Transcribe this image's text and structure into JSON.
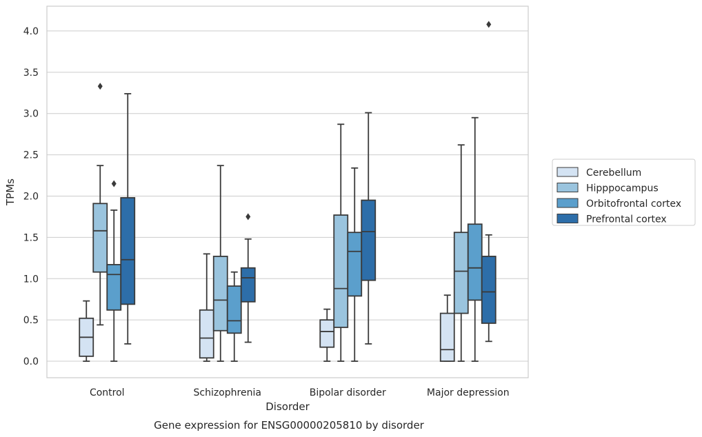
{
  "caption": "Gene expression for ENSG00000205810 by disorder",
  "chart_data": {
    "type": "box",
    "title": "",
    "xlabel": "Disorder",
    "ylabel": "TPMs",
    "ylim": [
      -0.2,
      4.3
    ],
    "yticks": [
      0.0,
      0.5,
      1.0,
      1.5,
      2.0,
      2.5,
      3.0,
      3.5,
      4.0
    ],
    "ytick_labels": [
      "0.0",
      "0.5",
      "1.0",
      "1.5",
      "2.0",
      "2.5",
      "3.0",
      "3.5",
      "4.0"
    ],
    "grid": "horizontal",
    "legend_position": "right",
    "categories": [
      "Control",
      "Schizophrenia",
      "Bipolar disorder",
      "Major depression"
    ],
    "series": [
      {
        "name": "Cerebellum",
        "color": "#d4e3f3",
        "boxes": [
          {
            "whisker_low": 0.0,
            "q1": 0.06,
            "median": 0.29,
            "q3": 0.52,
            "whisker_high": 0.73,
            "outliers": []
          },
          {
            "whisker_low": 0.0,
            "q1": 0.04,
            "median": 0.28,
            "q3": 0.62,
            "whisker_high": 1.3,
            "outliers": []
          },
          {
            "whisker_low": 0.0,
            "q1": 0.17,
            "median": 0.36,
            "q3": 0.5,
            "whisker_high": 0.63,
            "outliers": []
          },
          {
            "whisker_low": 0.0,
            "q1": 0.0,
            "median": 0.14,
            "q3": 0.58,
            "whisker_high": 0.8,
            "outliers": []
          }
        ]
      },
      {
        "name": "Hipppocampus",
        "color": "#9ac4de",
        "boxes": [
          {
            "whisker_low": 0.44,
            "q1": 1.08,
            "median": 1.58,
            "q3": 1.91,
            "whisker_high": 2.37,
            "outliers": [
              3.33
            ]
          },
          {
            "whisker_low": 0.0,
            "q1": 0.37,
            "median": 0.74,
            "q3": 1.27,
            "whisker_high": 2.37,
            "outliers": []
          },
          {
            "whisker_low": 0.0,
            "q1": 0.41,
            "median": 0.88,
            "q3": 1.77,
            "whisker_high": 2.87,
            "outliers": []
          },
          {
            "whisker_low": 0.0,
            "q1": 0.58,
            "median": 1.09,
            "q3": 1.56,
            "whisker_high": 2.62,
            "outliers": []
          }
        ]
      },
      {
        "name": "Orbitofrontal cortex",
        "color": "#5b9fcc",
        "boxes": [
          {
            "whisker_low": 0.0,
            "q1": 0.62,
            "median": 1.05,
            "q3": 1.17,
            "whisker_high": 1.83,
            "outliers": [
              2.15
            ]
          },
          {
            "whisker_low": 0.0,
            "q1": 0.34,
            "median": 0.49,
            "q3": 0.91,
            "whisker_high": 1.08,
            "outliers": []
          },
          {
            "whisker_low": 0.0,
            "q1": 0.79,
            "median": 1.33,
            "q3": 1.56,
            "whisker_high": 2.34,
            "outliers": []
          },
          {
            "whisker_low": 0.0,
            "q1": 0.74,
            "median": 1.13,
            "q3": 1.66,
            "whisker_high": 2.95,
            "outliers": []
          }
        ]
      },
      {
        "name": "Prefrontal cortex",
        "color": "#2d6ea9",
        "boxes": [
          {
            "whisker_low": 0.21,
            "q1": 0.69,
            "median": 1.23,
            "q3": 1.98,
            "whisker_high": 3.24,
            "outliers": []
          },
          {
            "whisker_low": 0.23,
            "q1": 0.72,
            "median": 1.01,
            "q3": 1.13,
            "whisker_high": 1.48,
            "outliers": [
              1.75
            ]
          },
          {
            "whisker_low": 0.21,
            "q1": 0.98,
            "median": 1.57,
            "q3": 1.95,
            "whisker_high": 3.01,
            "outliers": []
          },
          {
            "whisker_low": 0.24,
            "q1": 0.46,
            "median": 0.84,
            "q3": 1.27,
            "whisker_high": 1.53,
            "outliers": [
              4.08
            ]
          }
        ]
      }
    ]
  }
}
